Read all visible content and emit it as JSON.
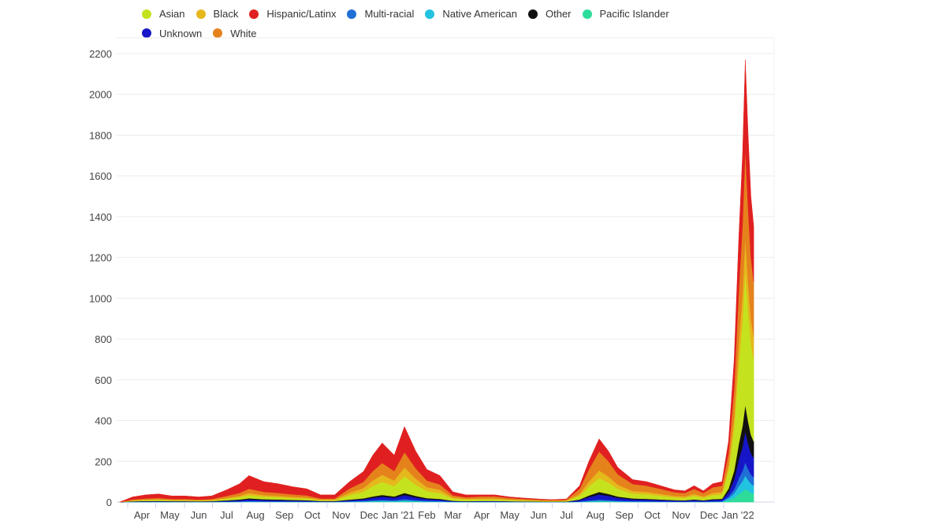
{
  "chart_data": {
    "type": "area",
    "stacked": true,
    "title": "",
    "xlabel": "",
    "ylabel": "",
    "ylim": [
      0,
      2200
    ],
    "yticks": [
      0,
      200,
      400,
      600,
      800,
      1000,
      1200,
      1400,
      1600,
      1800,
      2000,
      2200
    ],
    "grid": true,
    "legend_position": "top",
    "xticks": [
      {
        "date": "2020-04-01",
        "label": "Apr"
      },
      {
        "date": "2020-05-01",
        "label": "May"
      },
      {
        "date": "2020-06-01",
        "label": "Jun"
      },
      {
        "date": "2020-07-01",
        "label": "Jul"
      },
      {
        "date": "2020-08-01",
        "label": "Aug"
      },
      {
        "date": "2020-09-01",
        "label": "Sep"
      },
      {
        "date": "2020-10-01",
        "label": "Oct"
      },
      {
        "date": "2020-11-01",
        "label": "Nov"
      },
      {
        "date": "2020-12-01",
        "label": "Dec"
      },
      {
        "date": "2021-01-01",
        "label": "Jan '21"
      },
      {
        "date": "2021-02-01",
        "label": "Feb"
      },
      {
        "date": "2021-03-01",
        "label": "Mar"
      },
      {
        "date": "2021-04-01",
        "label": "Apr"
      },
      {
        "date": "2021-05-01",
        "label": "May"
      },
      {
        "date": "2021-06-01",
        "label": "Jun"
      },
      {
        "date": "2021-07-01",
        "label": "Jul"
      },
      {
        "date": "2021-08-01",
        "label": "Aug"
      },
      {
        "date": "2021-09-01",
        "label": "Sep"
      },
      {
        "date": "2021-10-01",
        "label": "Oct"
      },
      {
        "date": "2021-11-01",
        "label": "Nov"
      },
      {
        "date": "2021-12-01",
        "label": "Dec"
      },
      {
        "date": "2022-01-01",
        "label": "Jan '22"
      }
    ],
    "x": [
      "2020-03-08",
      "2020-03-22",
      "2020-04-05",
      "2020-04-19",
      "2020-05-03",
      "2020-05-17",
      "2020-06-01",
      "2020-06-15",
      "2020-07-01",
      "2020-07-15",
      "2020-07-25",
      "2020-08-10",
      "2020-08-25",
      "2020-09-10",
      "2020-09-25",
      "2020-10-10",
      "2020-10-25",
      "2020-11-10",
      "2020-11-25",
      "2020-12-05",
      "2020-12-15",
      "2020-12-28",
      "2021-01-08",
      "2021-01-20",
      "2021-02-01",
      "2021-02-15",
      "2021-03-01",
      "2021-03-15",
      "2021-04-01",
      "2021-04-15",
      "2021-05-01",
      "2021-05-15",
      "2021-06-01",
      "2021-06-15",
      "2021-07-01",
      "2021-07-15",
      "2021-07-25",
      "2021-08-05",
      "2021-08-15",
      "2021-08-25",
      "2021-09-10",
      "2021-09-25",
      "2021-10-10",
      "2021-10-25",
      "2021-11-05",
      "2021-11-15",
      "2021-11-25",
      "2021-12-05",
      "2021-12-15",
      "2021-12-22",
      "2021-12-28",
      "2022-01-02",
      "2022-01-06",
      "2022-01-09",
      "2022-01-12",
      "2022-01-15",
      "2022-01-18"
    ],
    "total": [
      0,
      25,
      35,
      40,
      30,
      30,
      25,
      30,
      60,
      90,
      130,
      100,
      90,
      75,
      65,
      35,
      35,
      100,
      150,
      230,
      290,
      230,
      370,
      250,
      160,
      130,
      50,
      35,
      35,
      35,
      25,
      20,
      15,
      12,
      15,
      80,
      200,
      310,
      250,
      170,
      110,
      100,
      80,
      60,
      55,
      80,
      55,
      90,
      100,
      300,
      700,
      1300,
      1700,
      2170,
      1800,
      1500,
      1350
    ],
    "period_of_point": [
      0,
      0,
      0,
      0,
      0,
      0,
      0,
      0,
      0,
      0,
      0,
      0,
      0,
      0,
      0,
      0,
      0,
      1,
      1,
      1,
      1,
      1,
      1,
      1,
      1,
      1,
      1,
      1,
      2,
      2,
      2,
      2,
      2,
      2,
      2,
      2,
      2,
      2,
      2,
      2,
      2,
      2,
      2,
      2,
      2,
      2,
      2,
      2,
      2,
      3,
      3,
      3,
      3,
      3,
      3,
      3,
      3
    ],
    "series_stack_order_bottom_to_top": [
      "Pacific Islander",
      "Native American",
      "Multi-racial",
      "Unknown",
      "Other",
      "Asian",
      "Black",
      "White",
      "Hispanic/Latinx"
    ],
    "series": [
      {
        "name": "Asian",
        "color": "#c5e21e",
        "share_by_period": [
          0.12,
          0.22,
          0.22,
          0.3
        ]
      },
      {
        "name": "Black",
        "color": "#e5b81c",
        "share_by_period": [
          0.08,
          0.12,
          0.12,
          0.08
        ]
      },
      {
        "name": "Hispanic/Latinx",
        "color": "#e02020",
        "share_by_period": [
          0.5,
          0.34,
          0.2,
          0.2
        ]
      },
      {
        "name": "Multi-racial",
        "color": "#1f6fd6",
        "share_by_period": [
          0.02,
          0.02,
          0.02,
          0.03
        ]
      },
      {
        "name": "Native American",
        "color": "#22c3e0",
        "share_by_period": [
          0.01,
          0.01,
          0.01,
          0.03
        ]
      },
      {
        "name": "Other",
        "color": "#111111",
        "share_by_period": [
          0.04,
          0.03,
          0.04,
          0.06
        ]
      },
      {
        "name": "Pacific Islander",
        "color": "#2edc9a",
        "share_by_period": [
          0.01,
          0.01,
          0.01,
          0.03
        ]
      },
      {
        "name": "Unknown",
        "color": "#1616c8",
        "share_by_period": [
          0.06,
          0.05,
          0.08,
          0.07
        ]
      },
      {
        "name": "White",
        "color": "#e5821c",
        "share_by_period": [
          0.16,
          0.2,
          0.3,
          0.2
        ]
      }
    ]
  }
}
